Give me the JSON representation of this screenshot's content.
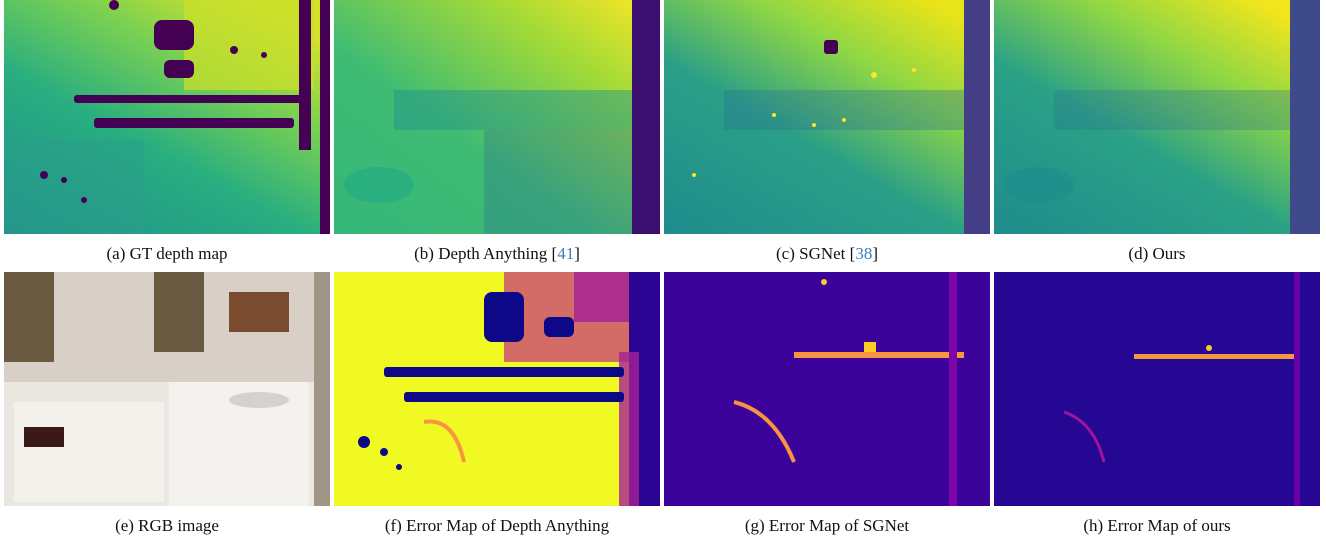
{
  "figure": {
    "panels": [
      {
        "id": "a",
        "caption_prefix": "(a) GT depth map",
        "ref": "",
        "caption_suffix": "",
        "colormap": "viridis"
      },
      {
        "id": "b",
        "caption_prefix": "(b) Depth Anything [",
        "ref": "41",
        "caption_suffix": "]",
        "colormap": "viridis"
      },
      {
        "id": "c",
        "caption_prefix": "(c) SGNet [",
        "ref": "38",
        "caption_suffix": "]",
        "colormap": "viridis"
      },
      {
        "id": "d",
        "caption_prefix": "(d) Ours",
        "ref": "",
        "caption_suffix": "",
        "colormap": "viridis"
      },
      {
        "id": "e",
        "caption_prefix": "(e) RGB image",
        "ref": "",
        "caption_suffix": "",
        "colormap": "rgb"
      },
      {
        "id": "f",
        "caption_prefix": "(f) Error Map of Depth Anything",
        "ref": "",
        "caption_suffix": "",
        "colormap": "plasma"
      },
      {
        "id": "g",
        "caption_prefix": "(g) Error Map of SGNet",
        "ref": "",
        "caption_suffix": "",
        "colormap": "plasma"
      },
      {
        "id": "h",
        "caption_prefix": "(h) Error Map of ours",
        "ref": "",
        "caption_suffix": "",
        "colormap": "plasma"
      }
    ],
    "colors": {
      "citation": "#3a7cc2",
      "viridis_dark": "#440154",
      "viridis_mid": "#21918c",
      "viridis_bright": "#fde725",
      "plasma_dark": "#2a0593",
      "plasma_bright": "#f0f921"
    }
  }
}
